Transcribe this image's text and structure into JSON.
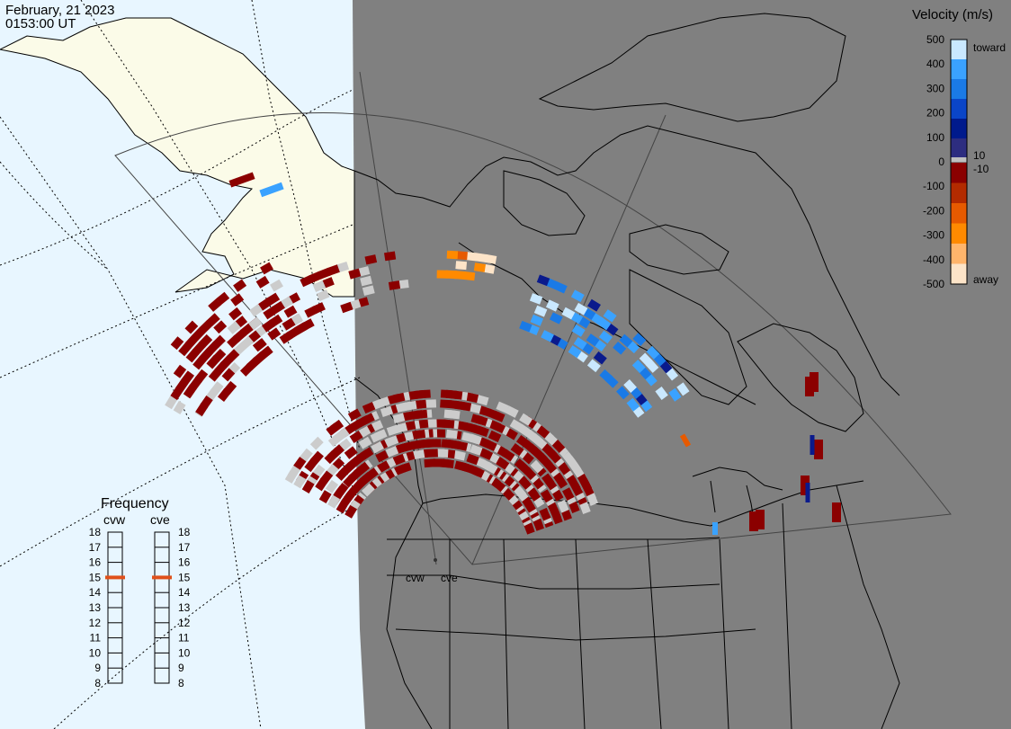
{
  "header": {
    "date": "February, 21 2023",
    "time": "0153:00 UT"
  },
  "legend": {
    "title": "Velocity (m/s)",
    "ticks": [
      "500",
      "400",
      "300",
      "200",
      "100",
      "0",
      "-100",
      "-200",
      "-300",
      "-400",
      "-500"
    ],
    "small_labels": [
      "10",
      "-10"
    ],
    "toward_label": "toward",
    "away_label": "away",
    "colors": [
      "#fde4c8",
      "#ffb56b",
      "#ff8a00",
      "#e65a00",
      "#b32b00",
      "#8a0000",
      "#2d2d80",
      "#001a8c",
      "#0a45c8",
      "#1a7ae6",
      "#3aa2ff",
      "#c9e8ff"
    ]
  },
  "frequency": {
    "title": "Frequency",
    "radars": [
      "cvw",
      "cve"
    ],
    "scale": [
      "18",
      "17",
      "16",
      "15",
      "14",
      "13",
      "12",
      "11",
      "10",
      "9",
      "8"
    ],
    "cvw_mhz": 15,
    "cve_mhz": 15,
    "marker_color": "#e0501a"
  },
  "map": {
    "radar_labels": [
      "cvw",
      "cve"
    ],
    "night_color": "#808080",
    "day_ocean_color": "#e8f6ff",
    "day_land_color": "#fbfbe8"
  }
}
